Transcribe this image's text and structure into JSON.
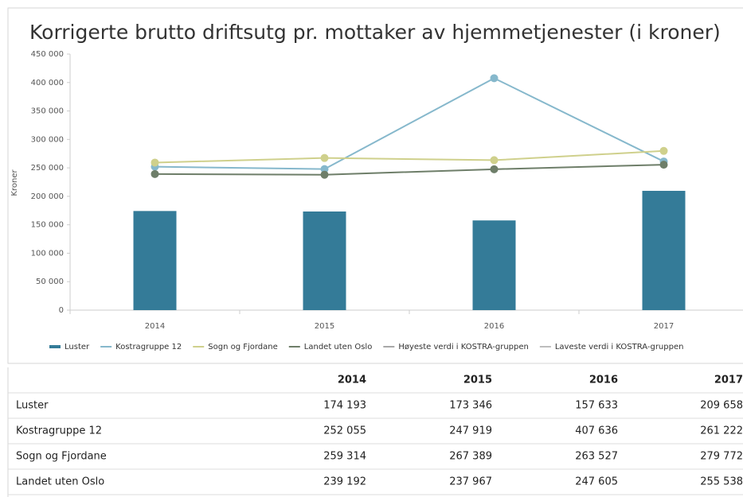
{
  "chart_data": {
    "type": "bar",
    "title": "Korrigerte brutto driftsutg pr. mottaker av hjemmetjenester (i kroner)",
    "y_label": "Kroner",
    "categories": [
      "2014",
      "2015",
      "2016",
      "2017"
    ],
    "series": [
      {
        "name": "Luster",
        "type": "bar",
        "color": "#347b98",
        "values": [
          174193,
          173346,
          157633,
          209658
        ]
      },
      {
        "name": "Kostragruppe 12",
        "type": "line",
        "color": "#86b8cc",
        "values": [
          252055,
          247919,
          407636,
          261222
        ]
      },
      {
        "name": "Sogn og Fjordane",
        "type": "line",
        "color": "#cfd08c",
        "values": [
          259314,
          267389,
          263527,
          279772
        ]
      },
      {
        "name": "Landet uten Oslo",
        "type": "line",
        "color": "#6e7e69",
        "values": [
          239192,
          237967,
          247605,
          255538
        ]
      },
      {
        "name": "Høyeste verdi i KOSTRA-gruppen",
        "type": "line",
        "color": "#a8a8a8",
        "values": [
          null,
          null,
          null,
          null
        ]
      },
      {
        "name": "Laveste verdi i KOSTRA-gruppen",
        "type": "line",
        "color": "#bdbdbd",
        "values": [
          null,
          null,
          null,
          null
        ]
      }
    ],
    "ylim": [
      0,
      450000
    ],
    "yticks": [
      0,
      {
        "value": 50000,
        "label": "50 000"
      },
      {
        "value": 100000,
        "label": "100 000"
      },
      {
        "value": 150000,
        "label": "150 000"
      },
      {
        "value": 200000,
        "label": "200 000"
      },
      {
        "value": 250000,
        "label": "250 000"
      },
      {
        "value": 300000,
        "label": "300 000"
      },
      {
        "value": 350000,
        "label": "350 000"
      },
      {
        "value": 400000,
        "label": "400 000"
      },
      {
        "value": 450000,
        "label": "450 000"
      }
    ],
    "grid": false
  },
  "table": {
    "header": [
      "2014",
      "2015",
      "2016",
      "2017"
    ],
    "rows": [
      [
        "Luster",
        "174 193",
        "173 346",
        "157 633",
        "209 658"
      ],
      [
        "Kostragruppe 12",
        "252 055",
        "247 919",
        "407 636",
        "261 222"
      ],
      [
        "Sogn og Fjordane",
        "259 314",
        "267 389",
        "263 527",
        "279 772"
      ],
      [
        "Landet uten Oslo",
        "239 192",
        "237 967",
        "247 605",
        "255 538"
      ]
    ]
  }
}
